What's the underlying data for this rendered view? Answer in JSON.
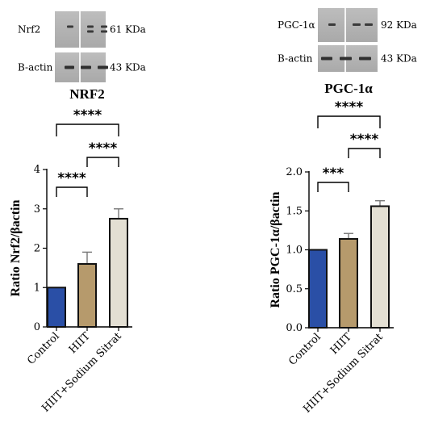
{
  "chart_data": [
    {
      "type": "bar",
      "title": "NRF2",
      "ylabel": "Ratio Nrf2/βactin",
      "categories": [
        "Control",
        "HIIT",
        "HIIT+Sodium Sitrat"
      ],
      "values": [
        1.0,
        1.6,
        2.75
      ],
      "errors": [
        0,
        0.3,
        0.25
      ],
      "ylim": [
        0,
        4
      ],
      "yticks": [
        "0",
        "1",
        "2",
        "3",
        "4"
      ],
      "bar_colors": [
        "#2a4fa6",
        "#b69a6c",
        "#e3dfd3"
      ],
      "significance": [
        {
          "from": "Control",
          "to": "HIIT",
          "label": "****"
        },
        {
          "from": "HIIT",
          "to": "HIIT+Sodium Sitrat",
          "label": "****"
        },
        {
          "from": "Control",
          "to": "HIIT+Sodium Sitrat",
          "label": "****"
        }
      ],
      "blots": [
        {
          "name": "Nrf2",
          "size": "61 KDa"
        },
        {
          "name": "B-actin",
          "size": "43 KDa"
        }
      ]
    },
    {
      "type": "bar",
      "title": "PGC-1α",
      "ylabel": "Ratio PGC-1α/βactin",
      "categories": [
        "Control",
        "HIIT",
        "HIIT+Sodium Sitrat"
      ],
      "values": [
        1.0,
        1.14,
        1.56
      ],
      "errors": [
        0,
        0.07,
        0.07
      ],
      "ylim": [
        0,
        2.0
      ],
      "yticks": [
        "0.0",
        "0.5",
        "1.0",
        "1.5",
        "2.0"
      ],
      "bar_colors": [
        "#2a4fa6",
        "#b69a6c",
        "#e3dfd3"
      ],
      "significance": [
        {
          "from": "Control",
          "to": "HIIT",
          "label": "***"
        },
        {
          "from": "HIIT",
          "to": "HIIT+Sodium Sitrat",
          "label": "****"
        },
        {
          "from": "Control",
          "to": "HIIT+Sodium Sitrat",
          "label": "****"
        }
      ],
      "blots": [
        {
          "name": "PGC-1α",
          "size": "92 KDa"
        },
        {
          "name": "B-actin",
          "size": "43 KDa"
        }
      ]
    }
  ]
}
